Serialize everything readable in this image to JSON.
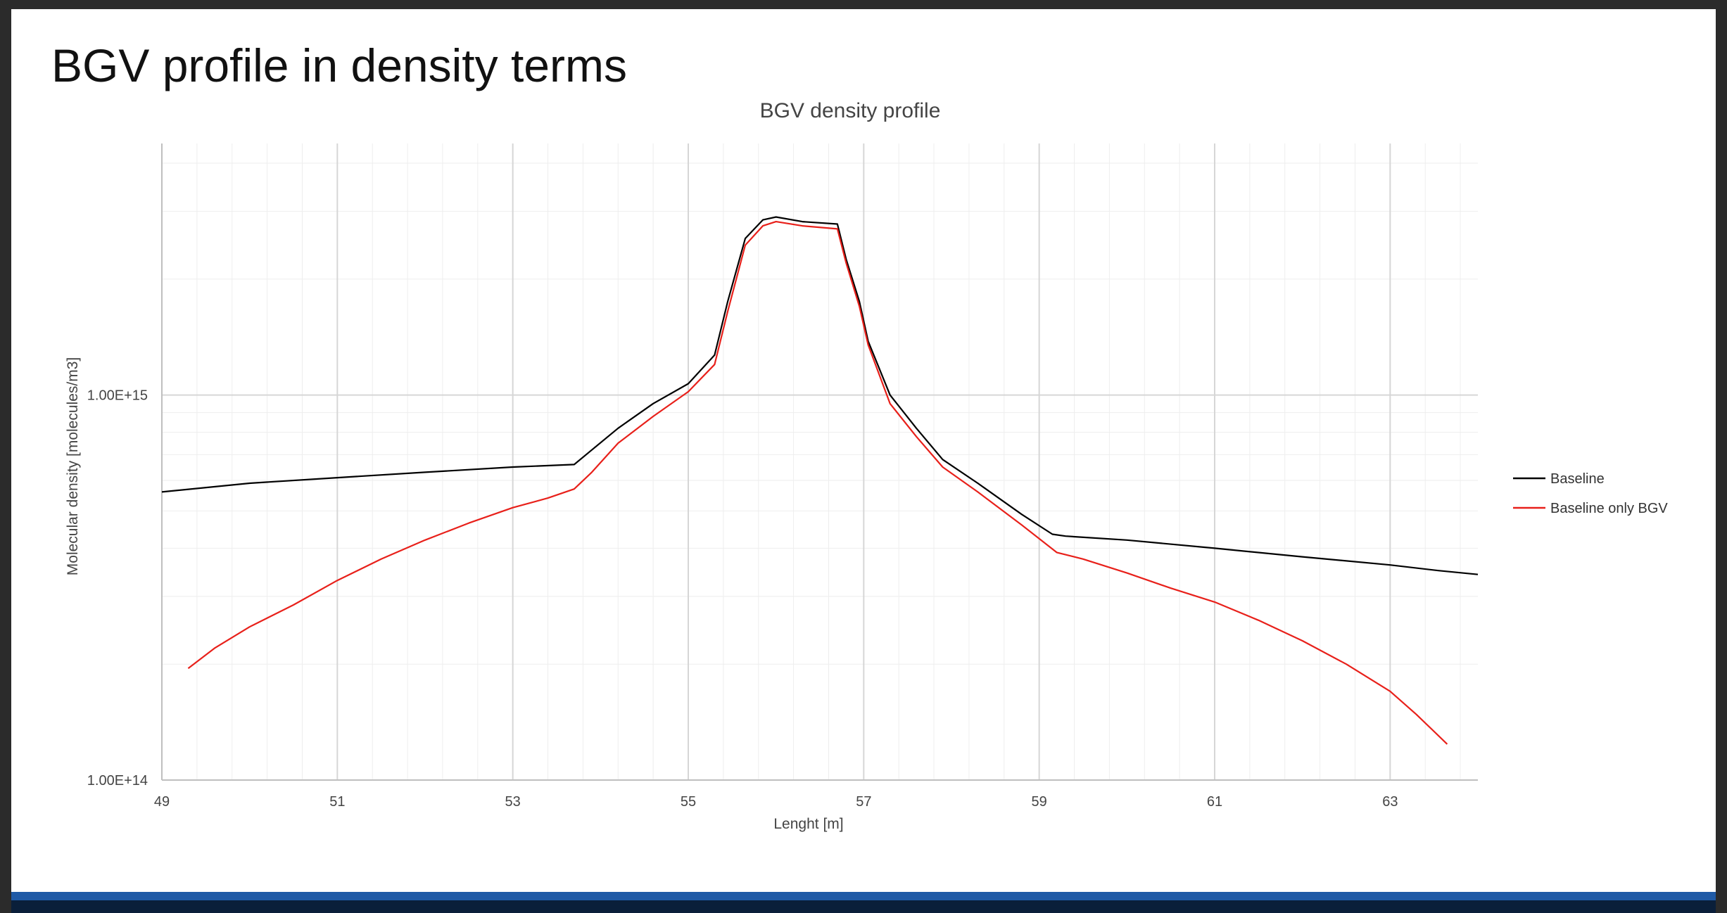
{
  "slide": {
    "title": "BGV profile in density terms"
  },
  "chart_data": {
    "type": "line",
    "title": "BGV density profile",
    "xlabel": "Lenght [m]",
    "ylabel": "Molecular density [molecules/m3]",
    "xlim": [
      49,
      64
    ],
    "ylim": [
      100000000000000.0,
      4500000000000000.0
    ],
    "y_scale": "log",
    "x_ticks": [
      "49",
      "51",
      "53",
      "55",
      "57",
      "59",
      "61",
      "63"
    ],
    "y_ticks": [
      "1.00E+14",
      "1.00E+15"
    ],
    "grid": true,
    "legend_position": "right",
    "series": [
      {
        "name": "Baseline",
        "color": "#000000",
        "x": [
          49.0,
          50.0,
          51.0,
          52.0,
          53.0,
          53.7,
          53.9,
          54.2,
          54.6,
          55.0,
          55.3,
          55.45,
          55.65,
          55.85,
          56.0,
          56.3,
          56.7,
          56.8,
          56.95,
          57.05,
          57.3,
          57.6,
          57.9,
          58.3,
          58.8,
          59.15,
          59.3,
          60.0,
          61.0,
          62.0,
          63.0,
          63.55,
          64.0
        ],
        "y": [
          560000000000000.0,
          590000000000000.0,
          610000000000000.0,
          630000000000000.0,
          650000000000000.0,
          660000000000000.0,
          720000000000000.0,
          820000000000000.0,
          950000000000000.0,
          1070000000000000.0,
          1270000000000000.0,
          1750000000000000.0,
          2550000000000000.0,
          2850000000000000.0,
          2900000000000000.0,
          2820000000000000.0,
          2780000000000000.0,
          2250000000000000.0,
          1750000000000000.0,
          1380000000000000.0,
          1000000000000000.0,
          820000000000000.0,
          680000000000000.0,
          590000000000000.0,
          490000000000000.0,
          435000000000000.0,
          430000000000000.0,
          420000000000000.0,
          400000000000000.0,
          380000000000000.0,
          362000000000000.0,
          350000000000000.0,
          342000000000000.0
        ]
      },
      {
        "name": "Baseline only BGV",
        "color": "#e8201a",
        "x": [
          49.3,
          49.6,
          50.0,
          50.5,
          51.0,
          51.5,
          52.0,
          52.5,
          53.0,
          53.4,
          53.7,
          53.9,
          54.2,
          54.6,
          55.0,
          55.3,
          55.45,
          55.65,
          55.85,
          56.0,
          56.3,
          56.7,
          56.8,
          56.95,
          57.05,
          57.3,
          57.6,
          57.9,
          58.3,
          58.8,
          59.2,
          59.5,
          60.0,
          60.5,
          61.0,
          61.5,
          62.0,
          62.5,
          63.0,
          63.3,
          63.65
        ],
        "y": [
          195000000000000.0,
          220000000000000.0,
          250000000000000.0,
          285000000000000.0,
          330000000000000.0,
          375000000000000.0,
          420000000000000.0,
          465000000000000.0,
          510000000000000.0,
          540000000000000.0,
          570000000000000.0,
          630000000000000.0,
          750000000000000.0,
          880000000000000.0,
          1020000000000000.0,
          1200000000000000.0,
          1650000000000000.0,
          2450000000000000.0,
          2750000000000000.0,
          2820000000000000.0,
          2750000000000000.0,
          2700000000000000.0,
          2200000000000000.0,
          1700000000000000.0,
          1350000000000000.0,
          950000000000000.0,
          780000000000000.0,
          650000000000000.0,
          560000000000000.0,
          460000000000000.0,
          390000000000000.0,
          375000000000000.0,
          345000000000000.0,
          315000000000000.0,
          290000000000000.0,
          260000000000000.0,
          230000000000000.0,
          200000000000000.0,
          170000000000000.0,
          148000000000000.0,
          124000000000000.0
        ]
      }
    ]
  }
}
